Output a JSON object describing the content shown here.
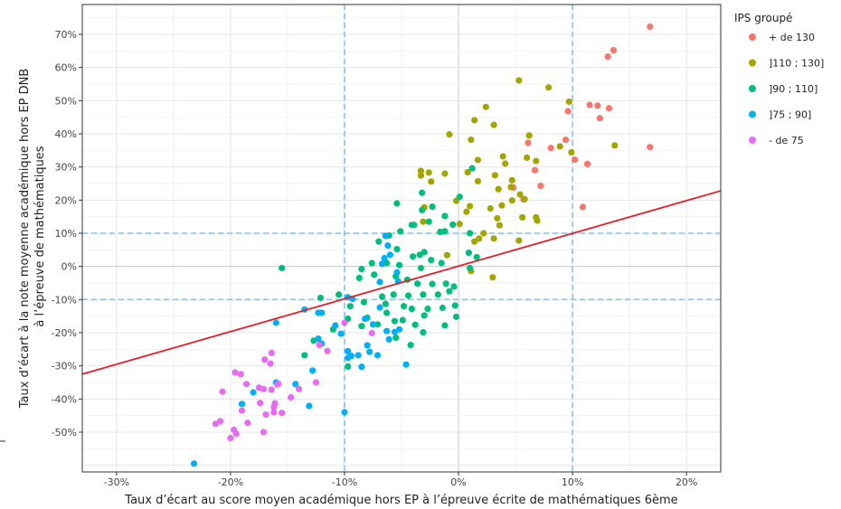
{
  "chart_data": {
    "type": "scatter",
    "xlabel": "Taux d’écart au score moyen académique hors EP à l’épreuve écrite de mathématiques 6ème",
    "ylabel_lines": [
      "Taux d’écart à la note moyenne académique hors EP DNB",
      "à l’épreuve de mathématiques"
    ],
    "xlim": [
      -0.33,
      0.23
    ],
    "ylim": [
      -0.62,
      0.79
    ],
    "x_ticks": [
      -0.3,
      -0.2,
      -0.1,
      0,
      0.1,
      0.2
    ],
    "x_tick_labels": [
      "-30%",
      "-20%",
      "-10%",
      "0%",
      "10%",
      "20%"
    ],
    "y_ticks": [
      0.7,
      0.6,
      0.5,
      0.4,
      0.3,
      0.2,
      0.1,
      0,
      -0.1,
      -0.2,
      -0.3,
      -0.4,
      -0.5
    ],
    "y_tick_labels": [
      "70%",
      "60%",
      "50%",
      "40%",
      "30%",
      "20%",
      "10%",
      "0%",
      "-10%",
      "-20%",
      "-30%",
      "-40%",
      "-50%"
    ],
    "grid": true,
    "reference_lines_x": [
      -0.1,
      0.1
    ],
    "reference_lines_y": [
      -0.1,
      0.1
    ],
    "reference_color": "#7fc4f5",
    "regression": {
      "color": "#e3202a",
      "x": [
        -0.33,
        0.23
      ],
      "y": [
        -0.325,
        0.228
      ]
    },
    "legend": {
      "title": "IPS groupé",
      "position": "right"
    },
    "series": [
      {
        "name": "+ de 130",
        "color": "#f8766d",
        "points": [
          [
            0.168,
            0.723
          ],
          [
            0.136,
            0.652
          ],
          [
            0.131,
            0.633
          ],
          [
            0.115,
            0.487
          ],
          [
            0.096,
            0.468
          ],
          [
            0.122,
            0.485
          ],
          [
            0.132,
            0.477
          ],
          [
            0.124,
            0.447
          ],
          [
            0.081,
            0.357
          ],
          [
            0.094,
            0.382
          ],
          [
            0.102,
            0.322
          ],
          [
            0.113,
            0.309
          ],
          [
            0.168,
            0.36
          ],
          [
            0.061,
            0.373
          ],
          [
            0.067,
            0.29
          ],
          [
            0.072,
            0.243
          ],
          [
            0.048,
            0.238
          ],
          [
            0.057,
            0.202
          ],
          [
            0.109,
            0.179
          ]
        ]
      },
      {
        "name": "]110 ; 130]",
        "color": "#a3a500",
        "points": [
          [
            0.053,
            0.561
          ],
          [
            0.079,
            0.54
          ],
          [
            0.097,
            0.497
          ],
          [
            0.024,
            0.481
          ],
          [
            0.014,
            0.441
          ],
          [
            0.031,
            0.427
          ],
          [
            -0.008,
            0.398
          ],
          [
            0.062,
            0.395
          ],
          [
            0.089,
            0.362
          ],
          [
            0.099,
            0.344
          ],
          [
            0.137,
            0.365
          ],
          [
            0.011,
            0.382
          ],
          [
            0.039,
            0.332
          ],
          [
            0.06,
            0.328
          ],
          [
            0.017,
            0.321
          ],
          [
            0.068,
            0.318
          ],
          [
            0.041,
            0.31
          ],
          [
            -0.033,
            0.288
          ],
          [
            -0.033,
            0.274
          ],
          [
            -0.026,
            0.283
          ],
          [
            -0.012,
            0.28
          ],
          [
            0.008,
            0.284
          ],
          [
            0.032,
            0.275
          ],
          [
            -0.024,
            0.256
          ],
          [
            0.017,
            0.257
          ],
          [
            0.047,
            0.26
          ],
          [
            0.046,
            0.239
          ],
          [
            0.035,
            0.233
          ],
          [
            0.054,
            0.217
          ],
          [
            0.058,
            0.203
          ],
          [
            0.047,
            0.199
          ],
          [
            0.038,
            0.184
          ],
          [
            -0.002,
            0.198
          ],
          [
            0.01,
            0.182
          ],
          [
            0.028,
            0.175
          ],
          [
            0.034,
            0.145
          ],
          [
            0.056,
            0.148
          ],
          [
            0.068,
            0.148
          ],
          [
            0.069,
            0.138
          ],
          [
            0.036,
            0.124
          ],
          [
            0.022,
            0.1
          ],
          [
            0.001,
            0.128
          ],
          [
            -0.031,
            0.135
          ],
          [
            0.018,
            0.084
          ],
          [
            0.014,
            0.075
          ],
          [
            0.031,
            0.084
          ],
          [
            0.053,
            0.078
          ],
          [
            -0.01,
            0.034
          ],
          [
            0.011,
            -0.014
          ],
          [
            0.03,
            -0.033
          ],
          [
            0.007,
            0.165
          ],
          [
            -0.03,
            0.178
          ]
        ]
      },
      {
        "name": "]90 ; 110]",
        "color": "#00bf7d",
        "points": [
          [
            -0.155,
            -0.005
          ],
          [
            0.012,
            0.296
          ],
          [
            -0.032,
            0.222
          ],
          [
            -0.054,
            0.19
          ],
          [
            -0.023,
            0.18
          ],
          [
            -0.032,
            0.17
          ],
          [
            0.001,
            0.21
          ],
          [
            -0.012,
            0.152
          ],
          [
            -0.005,
            0.126
          ],
          [
            -0.026,
            0.135
          ],
          [
            -0.039,
            0.125
          ],
          [
            -0.041,
            0.125
          ],
          [
            -0.012,
            0.106
          ],
          [
            -0.016,
            0.104
          ],
          [
            -0.051,
            0.106
          ],
          [
            -0.061,
            0.093
          ],
          [
            -0.07,
            0.075
          ],
          [
            -0.054,
            0.052
          ],
          [
            -0.03,
            0.043
          ],
          [
            -0.034,
            0.035
          ],
          [
            -0.04,
            0.03
          ],
          [
            -0.024,
            0.019
          ],
          [
            -0.033,
            -0.005
          ],
          [
            -0.052,
            0.004
          ],
          [
            -0.063,
            0.01
          ],
          [
            -0.076,
            0.01
          ],
          [
            -0.085,
            -0.008
          ],
          [
            -0.087,
            -0.035
          ],
          [
            -0.074,
            -0.025
          ],
          [
            -0.055,
            -0.03
          ],
          [
            -0.045,
            -0.04
          ],
          [
            -0.036,
            -0.052
          ],
          [
            -0.023,
            -0.053
          ],
          [
            -0.011,
            -0.052
          ],
          [
            -0.004,
            -0.061
          ],
          [
            -0.008,
            -0.075
          ],
          [
            -0.018,
            -0.085
          ],
          [
            -0.031,
            -0.085
          ],
          [
            -0.044,
            -0.088
          ],
          [
            -0.057,
            -0.085
          ],
          [
            -0.067,
            -0.091
          ],
          [
            -0.083,
            -0.108
          ],
          [
            -0.095,
            -0.12
          ],
          [
            -0.105,
            -0.085
          ],
          [
            -0.121,
            -0.095
          ],
          [
            -0.064,
            -0.113
          ],
          [
            -0.048,
            -0.12
          ],
          [
            -0.041,
            -0.128
          ],
          [
            -0.027,
            -0.128
          ],
          [
            -0.03,
            -0.148
          ],
          [
            -0.014,
            -0.125
          ],
          [
            -0.003,
            -0.118
          ],
          [
            -0.063,
            -0.14
          ],
          [
            -0.08,
            -0.155
          ],
          [
            -0.097,
            -0.158
          ],
          [
            -0.085,
            -0.18
          ],
          [
            -0.071,
            -0.175
          ],
          [
            -0.056,
            -0.165
          ],
          [
            -0.049,
            -0.162
          ],
          [
            -0.038,
            -0.176
          ],
          [
            -0.031,
            -0.199
          ],
          [
            -0.055,
            -0.215
          ],
          [
            -0.042,
            -0.237
          ],
          [
            -0.012,
            -0.178
          ],
          [
            -0.002,
            -0.152
          ],
          [
            0.01,
            -0.005
          ],
          [
            0.016,
            0.028
          ],
          [
            0.009,
            0.041
          ],
          [
            0.01,
            0.1
          ],
          [
            -0.097,
            -0.302
          ],
          [
            -0.127,
            -0.224
          ],
          [
            -0.135,
            -0.268
          ],
          [
            -0.11,
            -0.19
          ],
          [
            -0.015,
            0.01
          ]
        ]
      },
      {
        "name": "]75 ; 90]",
        "color": "#00b0f6",
        "points": [
          [
            -0.232,
            -0.595
          ],
          [
            -0.1,
            -0.44
          ],
          [
            -0.131,
            -0.421
          ],
          [
            -0.16,
            -0.35
          ],
          [
            -0.19,
            -0.415
          ],
          [
            -0.18,
            -0.38
          ],
          [
            -0.143,
            -0.355
          ],
          [
            -0.128,
            -0.314
          ],
          [
            -0.12,
            -0.233
          ],
          [
            -0.123,
            -0.218
          ],
          [
            -0.103,
            -0.203
          ],
          [
            -0.097,
            -0.256
          ],
          [
            -0.097,
            -0.276
          ],
          [
            -0.094,
            -0.27
          ],
          [
            -0.088,
            -0.268
          ],
          [
            -0.085,
            -0.303
          ],
          [
            -0.108,
            -0.178
          ],
          [
            -0.123,
            -0.14
          ],
          [
            -0.135,
            -0.13
          ],
          [
            -0.16,
            -0.17
          ],
          [
            -0.08,
            -0.238
          ],
          [
            -0.078,
            -0.258
          ],
          [
            -0.071,
            -0.268
          ],
          [
            -0.061,
            -0.22
          ],
          [
            -0.056,
            -0.198
          ],
          [
            -0.052,
            -0.19
          ],
          [
            -0.063,
            -0.195
          ],
          [
            -0.075,
            -0.175
          ],
          [
            -0.082,
            -0.158
          ],
          [
            -0.093,
            -0.098
          ],
          [
            -0.097,
            -0.093
          ],
          [
            -0.069,
            -0.124
          ],
          [
            -0.046,
            -0.296
          ],
          [
            -0.069,
            -0.047
          ],
          [
            -0.067,
            0.008
          ],
          [
            -0.065,
            0.025
          ],
          [
            -0.064,
            0.092
          ],
          [
            -0.062,
            0.063
          ],
          [
            -0.06,
            0.035
          ],
          [
            -0.054,
            -0.018
          ],
          [
            -0.053,
            -0.045
          ],
          [
            -0.12,
            -0.14
          ]
        ]
      },
      {
        "name": "- de 75",
        "color": "#e76bf3",
        "points": [
          [
            -0.2,
            -0.518
          ],
          [
            -0.197,
            -0.493
          ],
          [
            -0.209,
            -0.467
          ],
          [
            -0.213,
            -0.475
          ],
          [
            -0.195,
            -0.505
          ],
          [
            -0.185,
            -0.472
          ],
          [
            -0.171,
            -0.5
          ],
          [
            -0.207,
            -0.378
          ],
          [
            -0.196,
            -0.32
          ],
          [
            -0.191,
            -0.325
          ],
          [
            -0.186,
            -0.355
          ],
          [
            -0.175,
            -0.366
          ],
          [
            -0.165,
            -0.293
          ],
          [
            -0.164,
            -0.261
          ],
          [
            -0.17,
            -0.281
          ],
          [
            -0.171,
            -0.37
          ],
          [
            -0.164,
            -0.372
          ],
          [
            -0.174,
            -0.412
          ],
          [
            -0.169,
            -0.447
          ],
          [
            -0.162,
            -0.44
          ],
          [
            -0.161,
            -0.413
          ],
          [
            -0.162,
            -0.425
          ],
          [
            -0.158,
            -0.354
          ],
          [
            -0.155,
            -0.442
          ],
          [
            -0.159,
            -0.356
          ],
          [
            -0.147,
            -0.395
          ],
          [
            -0.14,
            -0.37
          ],
          [
            -0.125,
            -0.35
          ],
          [
            -0.122,
            -0.237
          ],
          [
            -0.115,
            -0.255
          ],
          [
            -0.19,
            -0.435
          ],
          [
            -0.076,
            -0.201
          ],
          [
            -0.1,
            -0.17
          ]
        ]
      }
    ]
  }
}
